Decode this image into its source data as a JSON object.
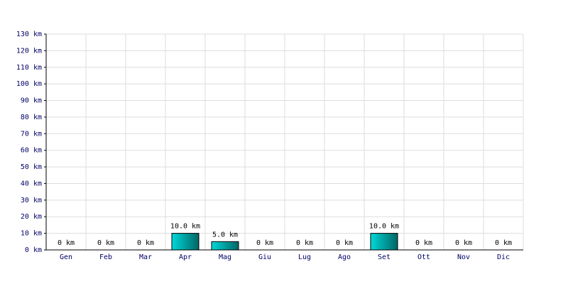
{
  "chart_data": {
    "type": "bar",
    "categories": [
      "Gen",
      "Feb",
      "Mar",
      "Apr",
      "Mag",
      "Giu",
      "Lug",
      "Ago",
      "Set",
      "Ott",
      "Nov",
      "Dic"
    ],
    "values": [
      0,
      0,
      0,
      10,
      5,
      0,
      0,
      0,
      10,
      0,
      0,
      0
    ],
    "value_labels": [
      "0 km",
      "0 km",
      "0 km",
      "10.0 km",
      "5.0 km",
      "0 km",
      "0 km",
      "0 km",
      "10.0 km",
      "0 km",
      "0 km",
      "0 km"
    ],
    "color": "#00d8d8",
    "ylim": [
      0,
      130
    ],
    "yticks": [
      {
        "value": 0,
        "label": "0 km"
      },
      {
        "value": 10,
        "label": "10 km"
      },
      {
        "value": 20,
        "label": "20 km"
      },
      {
        "value": 30,
        "label": "30 km"
      },
      {
        "value": 40,
        "label": "40 km"
      },
      {
        "value": 50,
        "label": "50 km"
      },
      {
        "value": 60,
        "label": "60 km"
      },
      {
        "value": 70,
        "label": "70 km"
      },
      {
        "value": 80,
        "label": "80 km"
      },
      {
        "value": 90,
        "label": "90 km"
      },
      {
        "value": 100,
        "label": "100 km"
      },
      {
        "value": 110,
        "label": "110 km"
      },
      {
        "value": 120,
        "label": "120 km"
      },
      {
        "value": 130,
        "label": "130 km"
      }
    ],
    "grid": true
  }
}
